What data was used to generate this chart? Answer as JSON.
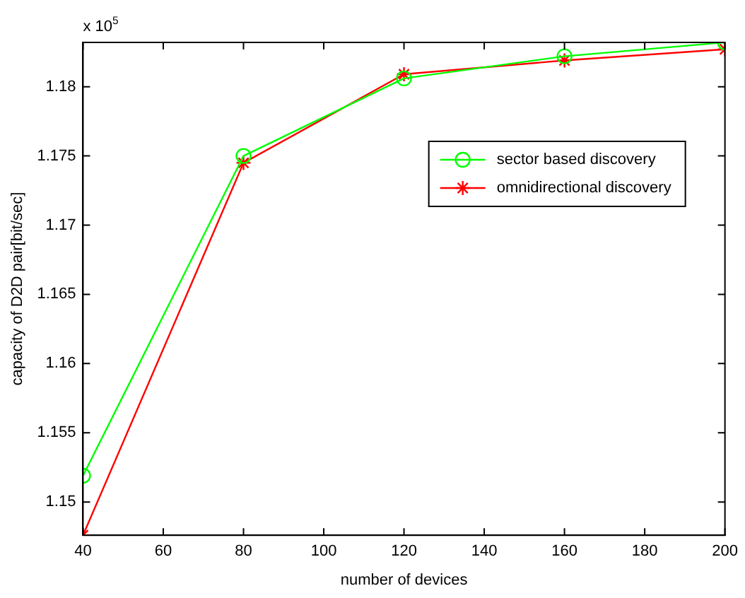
{
  "chart_data": {
    "type": "line",
    "xlabel": "number of devices",
    "ylabel": "capacity of D2D pair[bit/sec]",
    "annotations": [
      "x 10$^{5}$"
    ],
    "x": [
      40,
      80,
      120,
      160,
      200
    ],
    "series": [
      {
        "name": "sector based discovery",
        "color": "#00ff00",
        "marker": "circle",
        "values": [
          1.1519,
          1.175,
          1.1806,
          1.1822,
          1.1832
        ]
      },
      {
        "name": "omnidirectional discovery",
        "color": "#ff0000",
        "marker": "cross",
        "values": [
          1.1476,
          1.1745,
          1.1809,
          1.1819,
          1.1827
        ]
      }
    ],
    "xlim": [
      40,
      200
    ],
    "xticks": [
      40,
      60,
      80,
      100,
      120,
      140,
      160,
      180,
      200
    ],
    "ylim": [
      1.1476,
      1.1832
    ],
    "yticks": [
      1.15,
      1.155,
      1.16,
      1.165,
      1.17,
      1.175,
      1.18
    ],
    "grid": false,
    "legend": "right",
    "line_style": "solid"
  }
}
